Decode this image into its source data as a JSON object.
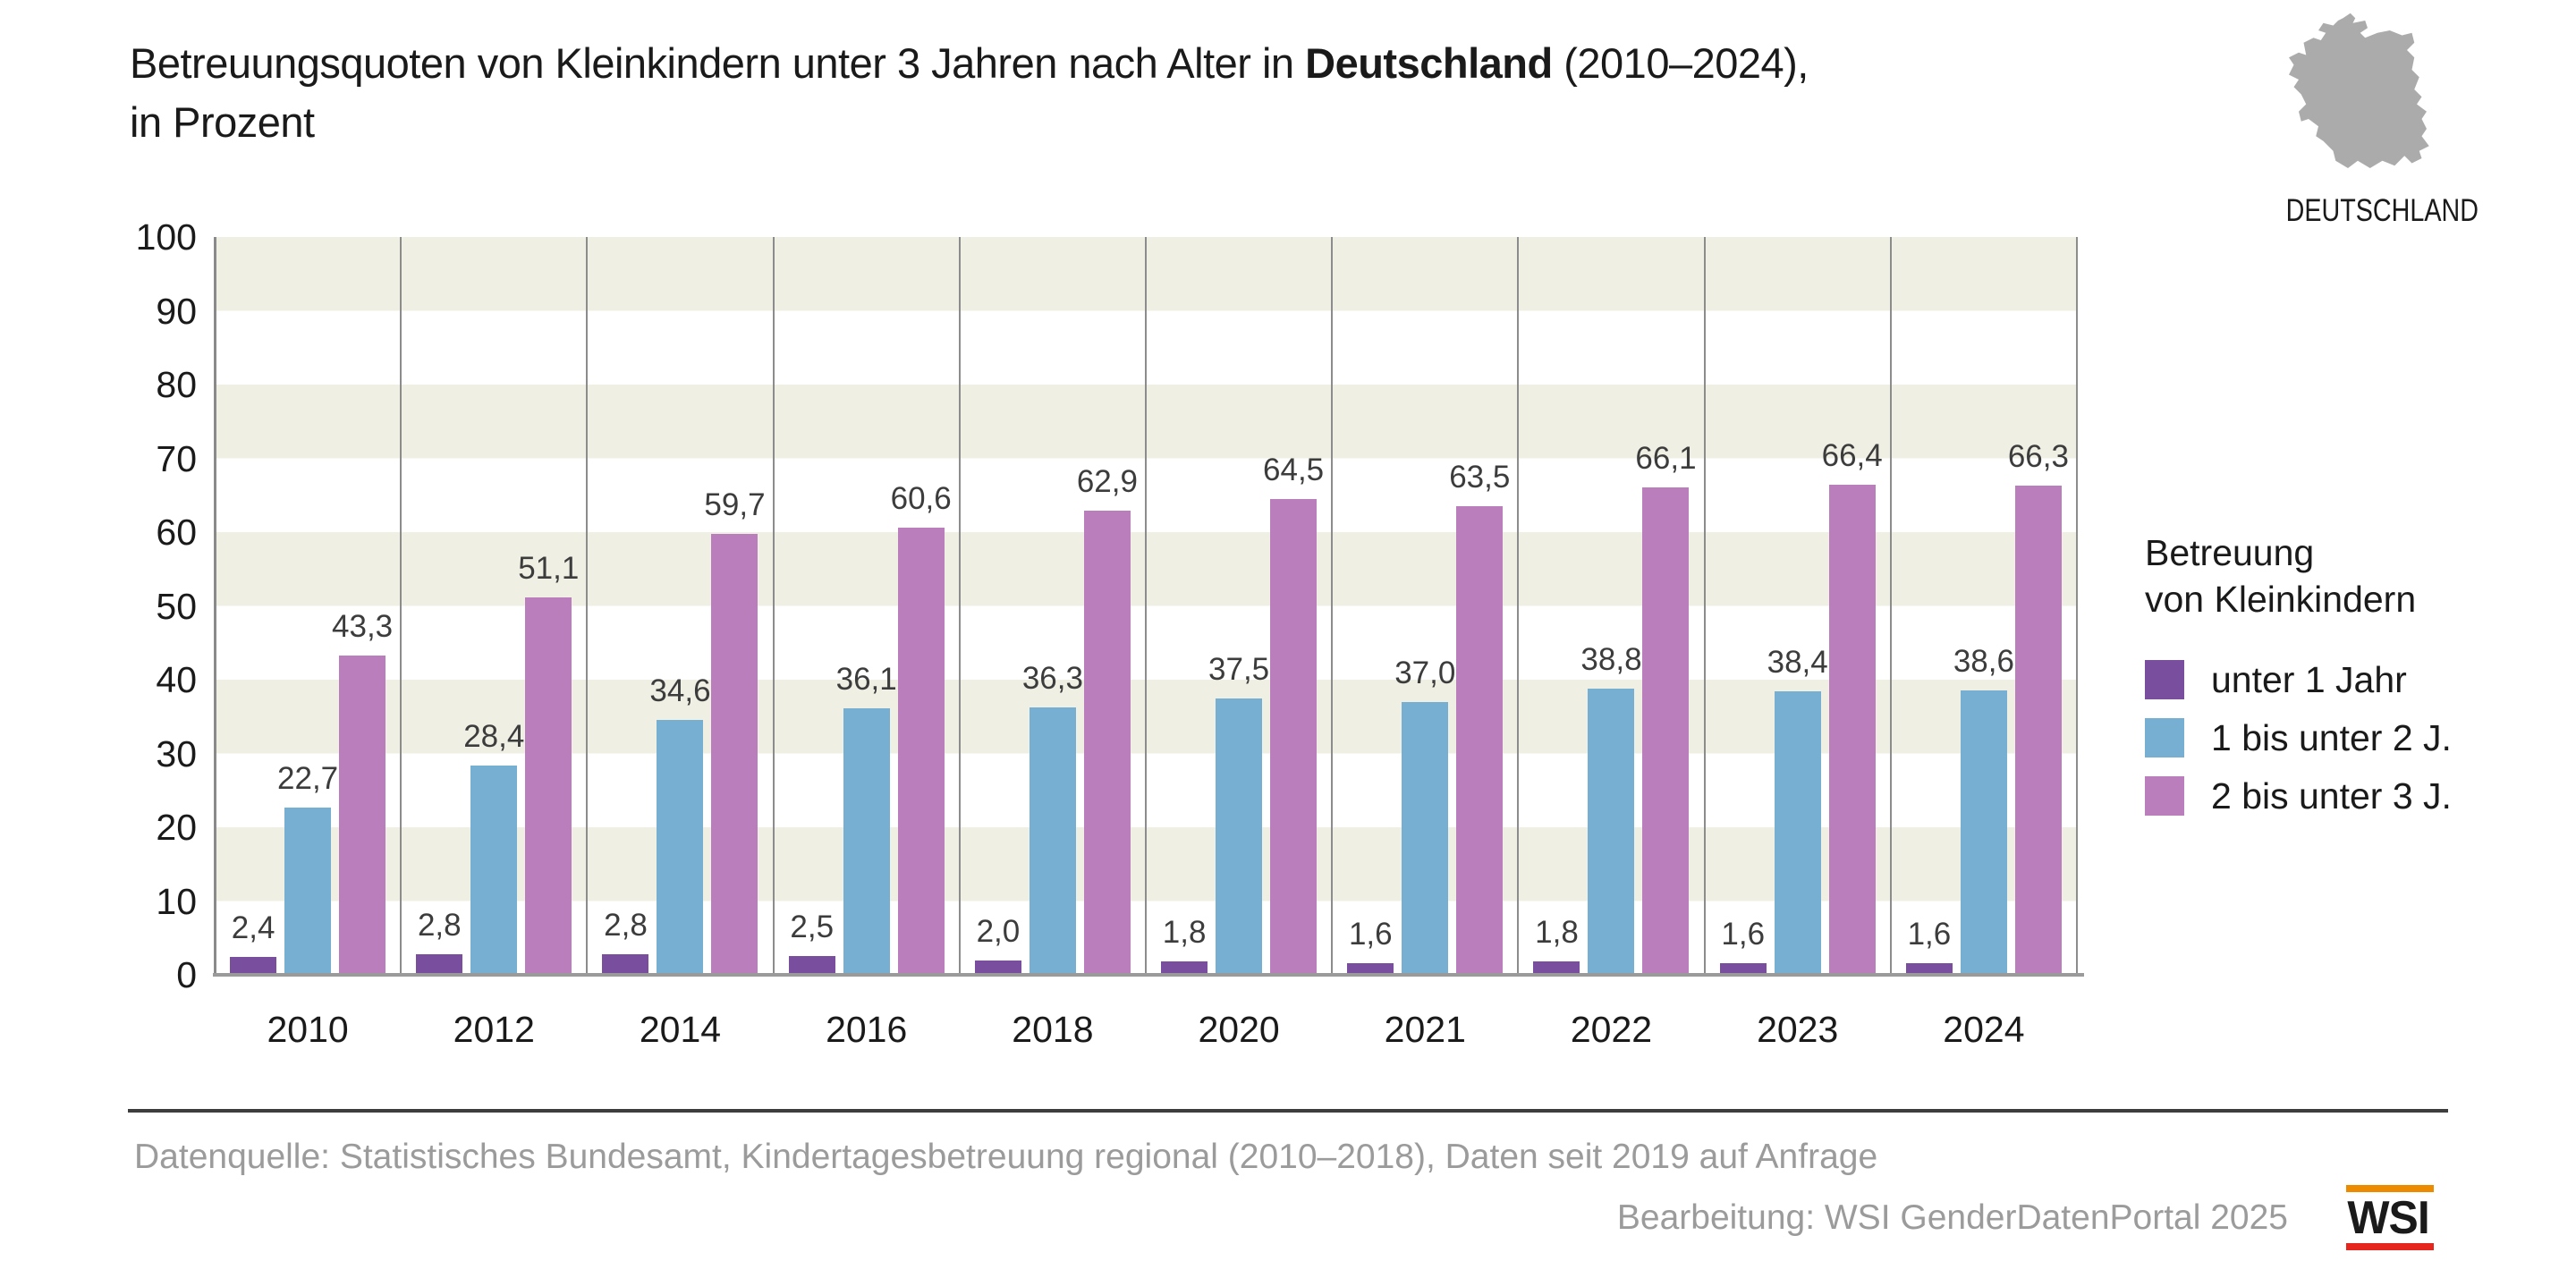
{
  "title": {
    "prefix": "Betreuungsquoten von Kleinkindern unter 3 Jahren nach Alter in ",
    "bold": "Deutschland",
    "suffix": " (2010–2024),",
    "line2": "in Prozent"
  },
  "map": {
    "label": "DEUTSCHLAND"
  },
  "chart_data": {
    "type": "bar",
    "title": "Betreuungsquoten von Kleinkindern unter 3 Jahren nach Alter in Deutschland (2010–2024), in Prozent",
    "categories": [
      "2010",
      "2012",
      "2014",
      "2016",
      "2018",
      "2020",
      "2021",
      "2022",
      "2023",
      "2024"
    ],
    "series": [
      {
        "name": "unter 1 Jahr",
        "color": "#7A4E9E",
        "values": [
          2.4,
          2.8,
          2.8,
          2.5,
          2.0,
          1.8,
          1.6,
          1.8,
          1.6,
          1.6
        ],
        "labels": [
          "2,4",
          "2,8",
          "2,8",
          "2,5",
          "2,0",
          "1,8",
          "1,6",
          "1,8",
          "1,6",
          "1,6"
        ]
      },
      {
        "name": "1 bis unter 2 J.",
        "color": "#77AFD2",
        "values": [
          22.7,
          28.4,
          34.6,
          36.1,
          36.3,
          37.5,
          37.0,
          38.8,
          38.4,
          38.6
        ],
        "labels": [
          "22,7",
          "28,4",
          "34,6",
          "36,1",
          "36,3",
          "37,5",
          "37,0",
          "38,8",
          "38,4",
          "38,6"
        ]
      },
      {
        "name": "2 bis unter 3 J.",
        "color": "#B97EBB",
        "values": [
          43.3,
          51.1,
          59.7,
          60.6,
          62.9,
          64.5,
          63.5,
          66.1,
          66.4,
          66.3
        ],
        "labels": [
          "43,3",
          "51,1",
          "59,7",
          "60,6",
          "62,9",
          "64,5",
          "63,5",
          "66,1",
          "66,4",
          "66,3"
        ]
      }
    ],
    "ylim": [
      0,
      100
    ],
    "yticks": [
      0,
      10,
      20,
      30,
      40,
      50,
      60,
      70,
      80,
      90,
      100
    ],
    "grid": "alternating horizontal bands every 10 units",
    "legend_position": "right"
  },
  "legend": {
    "title_line1": "Betreuung",
    "title_line2": "von Kleinkindern"
  },
  "footer": {
    "source": "Datenquelle: Statistisches Bundesamt, Kindertagesbetreuung regional (2010–2018), Daten seit 2019 auf Anfrage",
    "editing": "Bearbeitung: WSI GenderDatenPortal 2025",
    "logo_text": "WSI"
  },
  "colors": {
    "band_beige": "#F0EFE4",
    "band_white": "#FFFFFF",
    "separator_gray": "#8C8C8C",
    "baseline_gray": "#9A9A9A",
    "map_gray": "#ABABAB",
    "logo_orange": "#ED8B00",
    "logo_red": "#E5261F",
    "footer_text_gray": "#9B9B9B"
  }
}
